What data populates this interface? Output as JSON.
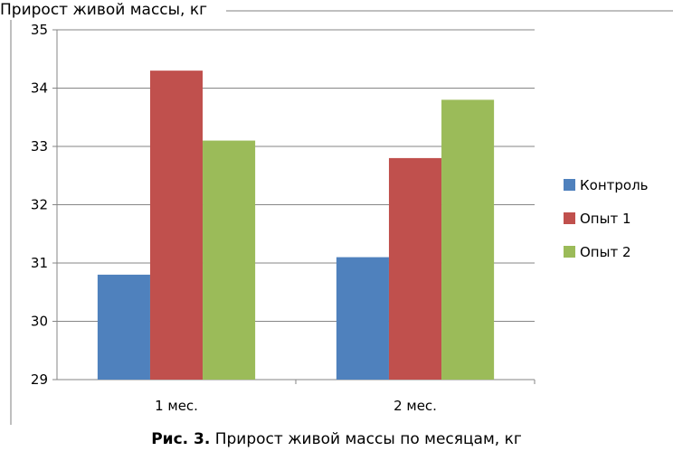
{
  "caption": {
    "label": "Рис.  3.",
    "text": "Прирост живой массы по месяцам, кг"
  },
  "chart_data": {
    "type": "bar",
    "title": "Прирост живой массы, кг",
    "categories": [
      "1 мес.",
      "2 мес."
    ],
    "series": [
      {
        "name": "Контроль",
        "color": "#4F81BD",
        "values": [
          30.8,
          31.1
        ]
      },
      {
        "name": "Опыт 1",
        "color": "#C0504D",
        "values": [
          34.3,
          32.8
        ]
      },
      {
        "name": "Опыт 2",
        "color": "#9BBB59",
        "values": [
          33.1,
          33.8
        ]
      }
    ],
    "ylim": [
      29,
      35
    ],
    "yticks": [
      "29",
      "30",
      "31",
      "32",
      "33",
      "34",
      "35"
    ],
    "xlabel": "",
    "ylabel": "",
    "grid": true,
    "legend": "right"
  }
}
